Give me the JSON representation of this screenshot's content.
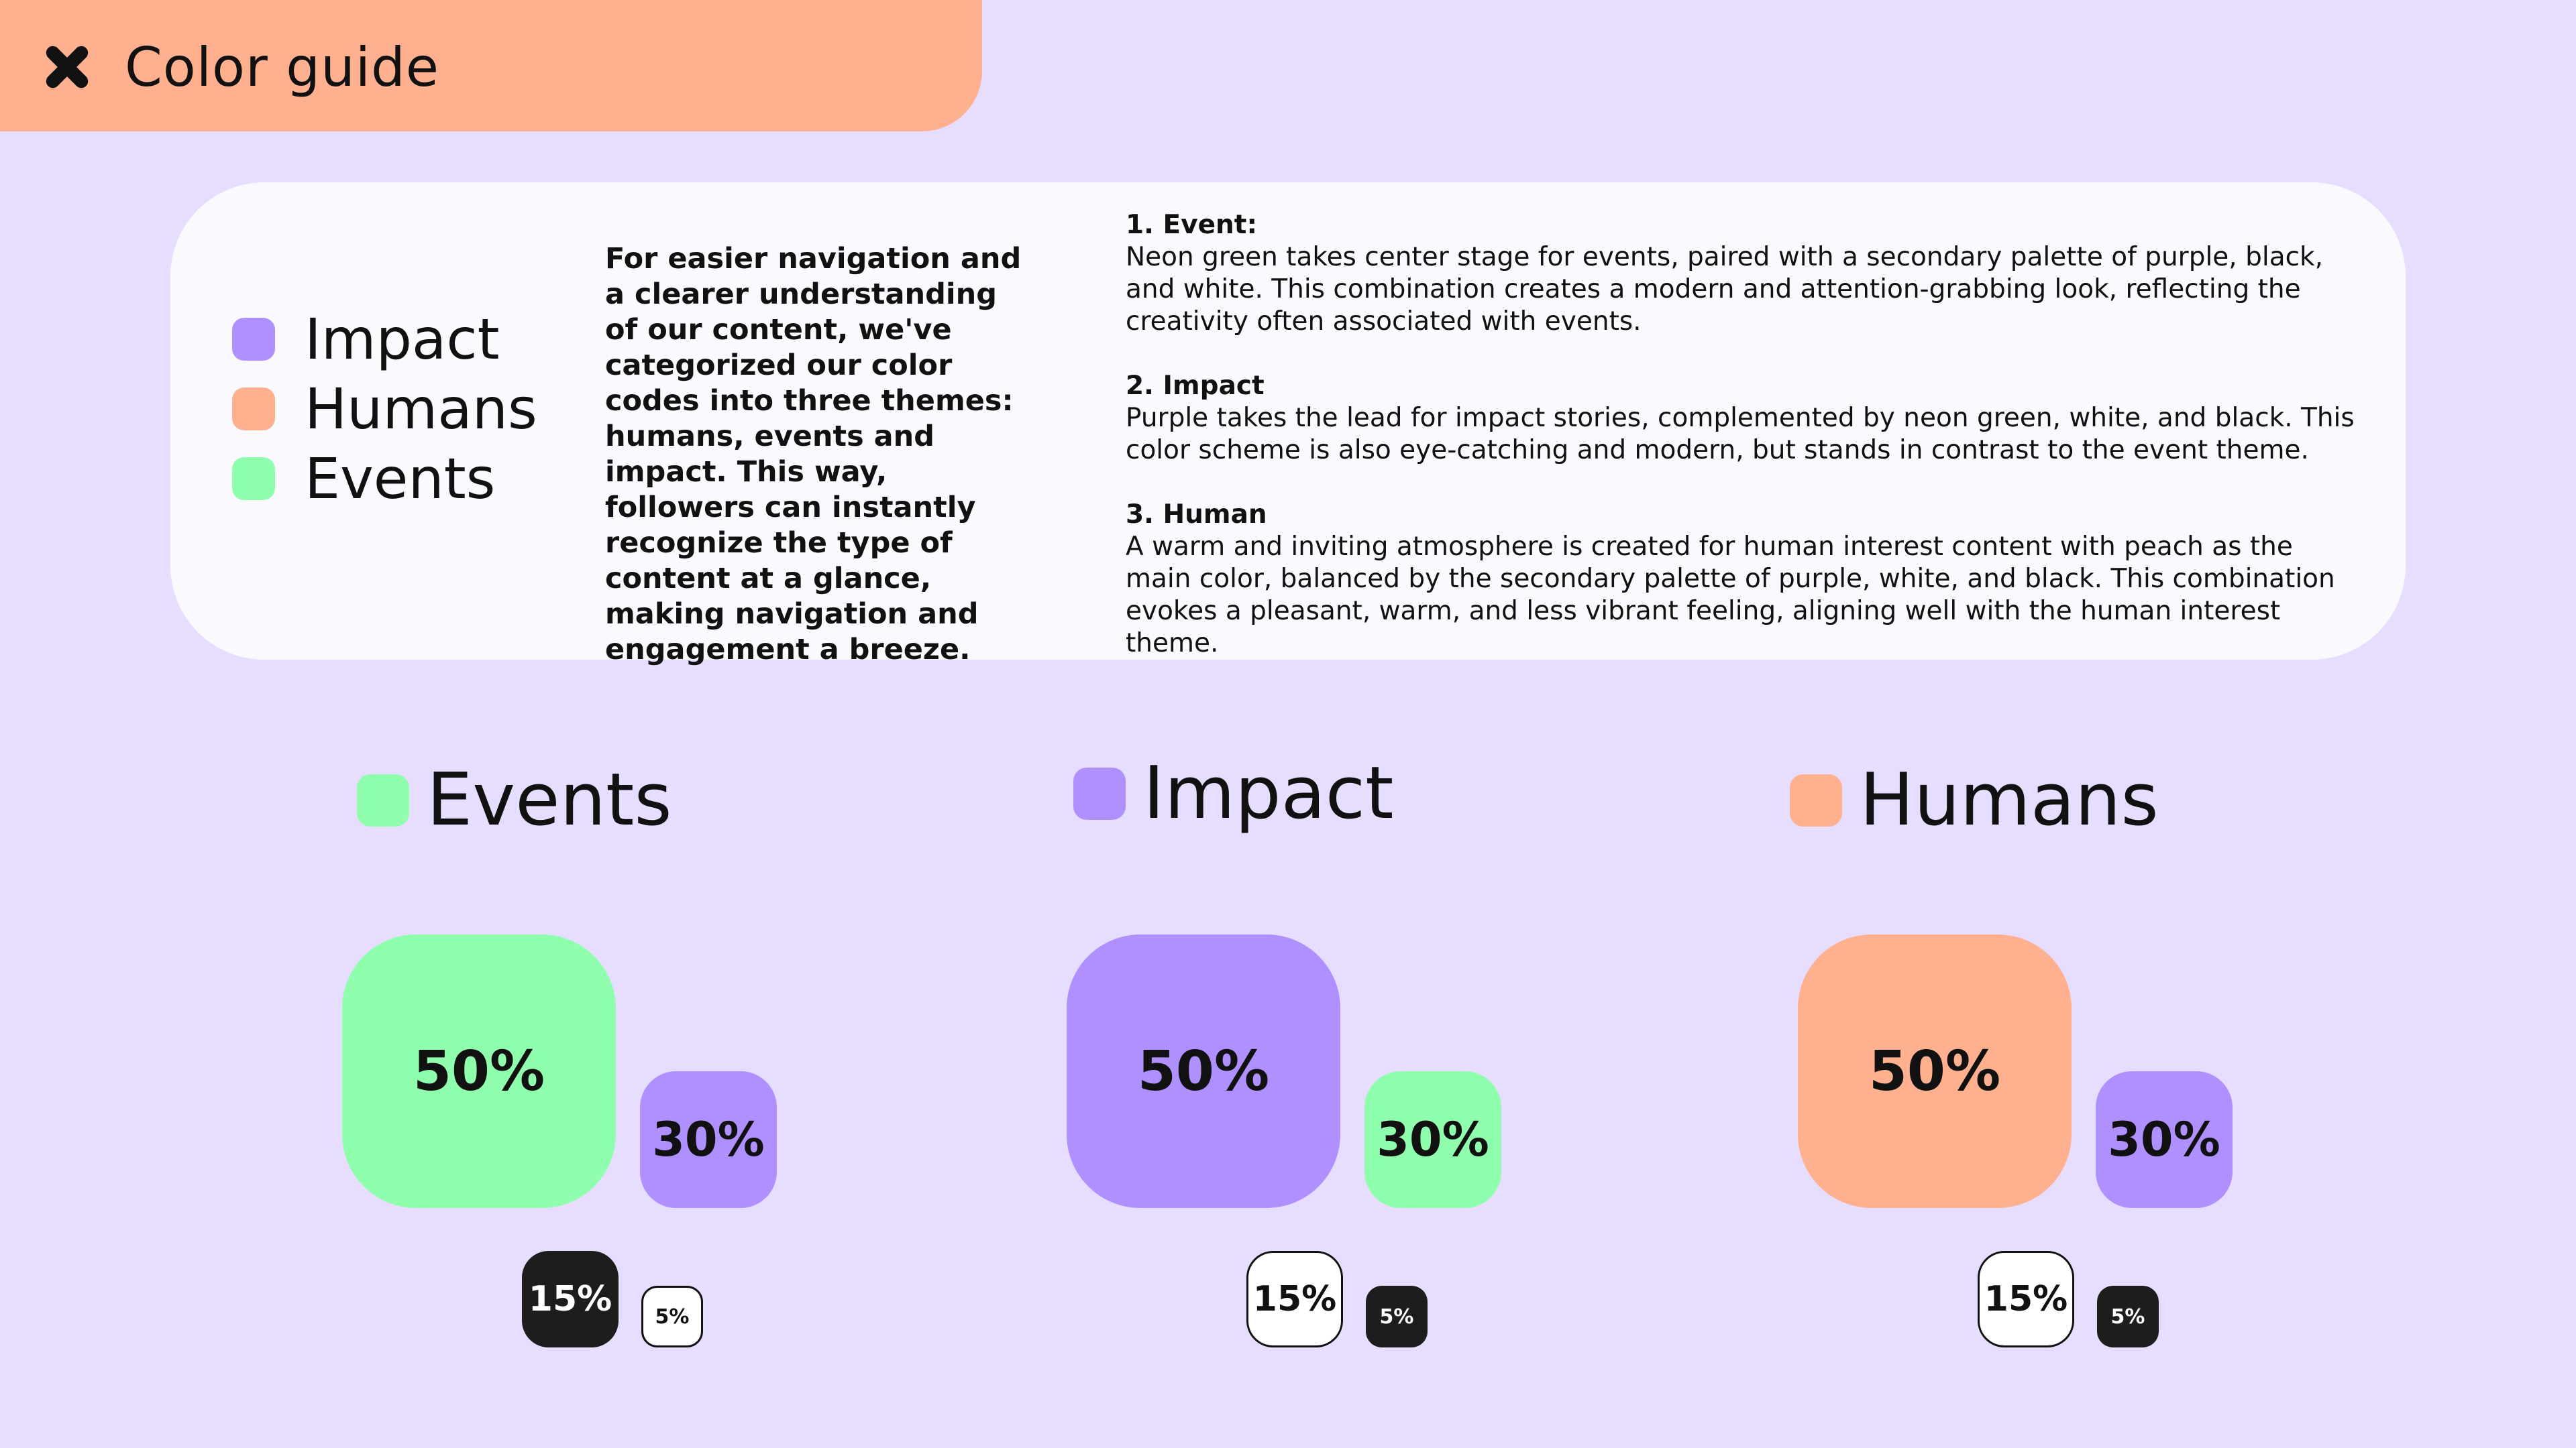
{
  "header": {
    "title": "Color guide",
    "icon": "close-x-icon"
  },
  "colors": {
    "impact": "#B08FFF",
    "humans": "#FFB08E",
    "events": "#8FFFAD",
    "black": "#1D1D1D",
    "white": "#FFFFFF",
    "background": "#E6DDFF"
  },
  "legend": [
    {
      "label": "Impact",
      "color": "#B08FFF"
    },
    {
      "label": "Humans",
      "color": "#FFB08E"
    },
    {
      "label": "Events",
      "color": "#8FFFAD"
    }
  ],
  "intro": "For easier navigation and a clearer understanding of our content, we've categorized our color codes into three themes: humans, events and impact. This way, followers can instantly recognize the type of content at a glance, making navigation and engagement a breeze.",
  "themes": [
    {
      "heading": "1. Event:",
      "body": "Neon green takes center stage for events, paired with a secondary palette of purple, black, and white. This combination creates a modern and attention-grabbing look, reflecting the creativity often associated with events."
    },
    {
      "heading": "2. Impact",
      "body": "Purple takes the lead for impact stories, complemented by neon green, white, and black. This color scheme is also eye-catching and modern, but stands in contrast to the event theme."
    },
    {
      "heading": "3. Human",
      "body": "A warm and inviting atmosphere is created for human interest content with peach as the main color, balanced by the secondary palette of purple, white, and black. This combination evokes a pleasant, warm, and less vibrant feeling, aligning well with the human interest theme."
    }
  ],
  "palettes": [
    {
      "title": "Events",
      "swatch": "#8FFFAD",
      "shares": {
        "primary": "50%",
        "secondary": "30%",
        "tertiary": "15%",
        "accent": "5%"
      },
      "colors": {
        "primary": "green",
        "secondary": "purple",
        "tertiary": "black",
        "accent": "white"
      }
    },
    {
      "title": "Impact",
      "swatch": "#B08FFF",
      "shares": {
        "primary": "50%",
        "secondary": "30%",
        "tertiary": "15%",
        "accent": "5%"
      },
      "colors": {
        "primary": "purple",
        "secondary": "green",
        "tertiary": "white",
        "accent": "black"
      }
    },
    {
      "title": "Humans",
      "swatch": "#FFB08E",
      "shares": {
        "primary": "50%",
        "secondary": "30%",
        "tertiary": "15%",
        "accent": "5%"
      },
      "colors": {
        "primary": "peach",
        "secondary": "purple",
        "tertiary": "white",
        "accent": "black"
      }
    }
  ]
}
